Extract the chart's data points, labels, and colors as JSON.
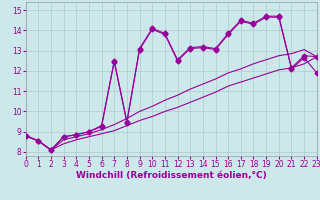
{
  "xlabel": "Windchill (Refroidissement éolien,°C)",
  "bg_color": "#cce8ea",
  "grid_color": "#aacccc",
  "line_color": "#990099",
  "x_ticks": [
    0,
    1,
    2,
    3,
    4,
    5,
    6,
    7,
    8,
    9,
    10,
    11,
    12,
    13,
    14,
    15,
    16,
    17,
    18,
    19,
    20,
    21,
    22,
    23
  ],
  "y_ticks": [
    8,
    9,
    10,
    11,
    12,
    13,
    14,
    15
  ],
  "xlim": [
    0,
    23
  ],
  "ylim": [
    7.8,
    15.4
  ],
  "line1_x": [
    0,
    1,
    2,
    3,
    4,
    5,
    6,
    7,
    8,
    9,
    10,
    11,
    12,
    13,
    14,
    15,
    16,
    17,
    18,
    19,
    20,
    21,
    22,
    23
  ],
  "line1_y": [
    8.8,
    8.55,
    8.1,
    8.75,
    8.85,
    9.0,
    9.3,
    12.5,
    9.5,
    13.1,
    14.1,
    13.85,
    12.55,
    13.15,
    13.2,
    13.1,
    13.85,
    14.5,
    14.35,
    14.7,
    14.7,
    12.15,
    12.75,
    12.7
  ],
  "line2_x": [
    0,
    1,
    2,
    3,
    4,
    5,
    6,
    7,
    8,
    9,
    10,
    11,
    12,
    13,
    14,
    15,
    16,
    17,
    18,
    19,
    20,
    21,
    22,
    23
  ],
  "line2_y": [
    8.8,
    8.55,
    8.1,
    8.6,
    8.75,
    8.9,
    9.1,
    9.35,
    9.65,
    10.0,
    10.25,
    10.55,
    10.8,
    11.1,
    11.35,
    11.6,
    11.9,
    12.1,
    12.35,
    12.55,
    12.75,
    12.85,
    13.05,
    12.7
  ],
  "line3_x": [
    0,
    1,
    2,
    3,
    4,
    5,
    6,
    7,
    8,
    9,
    10,
    11,
    12,
    13,
    14,
    15,
    16,
    17,
    18,
    19,
    20,
    21,
    22,
    23
  ],
  "line3_y": [
    8.8,
    8.55,
    8.1,
    8.4,
    8.6,
    8.75,
    8.9,
    9.05,
    9.3,
    9.55,
    9.75,
    10.0,
    10.2,
    10.45,
    10.7,
    10.95,
    11.25,
    11.45,
    11.65,
    11.85,
    12.05,
    12.15,
    12.35,
    12.7
  ],
  "line4_x": [
    0,
    1,
    2,
    3,
    4,
    5,
    6,
    7,
    8,
    9,
    10,
    11,
    12,
    13,
    14,
    15,
    16,
    17,
    18,
    19,
    20,
    21,
    22,
    23
  ],
  "line4_y": [
    8.8,
    8.55,
    8.1,
    8.75,
    8.85,
    9.0,
    9.25,
    12.45,
    9.45,
    13.05,
    14.05,
    13.8,
    12.5,
    13.1,
    13.15,
    13.05,
    13.8,
    14.45,
    14.3,
    14.65,
    14.65,
    12.1,
    12.65,
    11.9
  ],
  "marker_size": 2.5,
  "line_width": 0.8,
  "tick_fontsize": 5.5,
  "xlabel_fontsize": 6.5
}
